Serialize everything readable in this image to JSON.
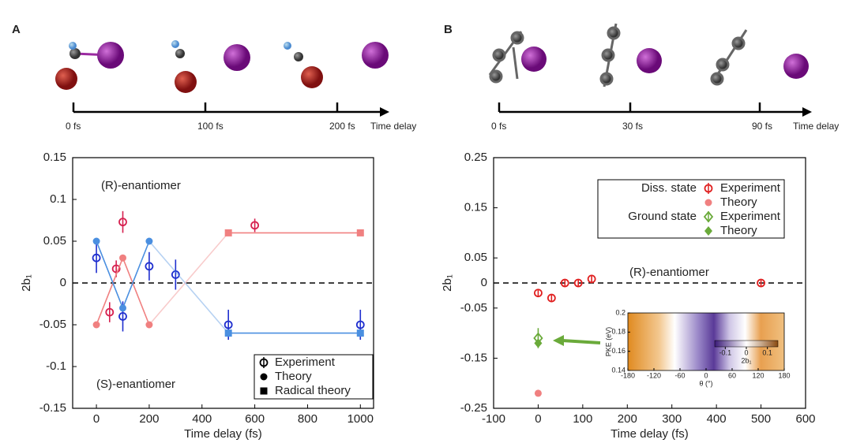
{
  "chart_data": [
    {
      "type": "scatter",
      "panel_label": "A",
      "timeline": {
        "ticks": [
          "0 fs",
          "100 fs",
          "200 fs"
        ],
        "label": "Time delay"
      },
      "xlabel": "Time delay (fs)",
      "ylabel": "2b₁",
      "xlim": [
        -90,
        1050
      ],
      "xticks": [
        0,
        200,
        400,
        600,
        800,
        1000
      ],
      "ylim": [
        -0.15,
        0.15
      ],
      "yticks": [
        -0.15,
        -0.1,
        -0.05,
        0,
        0.05,
        0.1,
        0.15
      ],
      "zero_line": true,
      "annotations": [
        {
          "text": "(R)-enantiomer",
          "color": "#d6204f"
        },
        {
          "text": "(S)-enantiomer",
          "color": "#1f2fcf"
        }
      ],
      "legend": {
        "entries": [
          "Experiment",
          "Theory",
          "Radical theory"
        ]
      },
      "series": [
        {
          "color": "#d6204f",
          "marker": "open-circle",
          "x": [
            50,
            75,
            100,
            600
          ],
          "values": [
            -0.035,
            0.017,
            0.073,
            0.069
          ],
          "errors": [
            0.012,
            0.01,
            0.013,
            0.008
          ]
        },
        {
          "color": "#f08080",
          "marker": "circle",
          "line": true,
          "x": [
            0,
            100,
            200
          ],
          "values": [
            -0.05,
            0.03,
            -0.05
          ]
        },
        {
          "color": "#f08080",
          "marker": "square",
          "line": true,
          "x": [
            500,
            1000
          ],
          "values": [
            0.06,
            0.06
          ]
        },
        {
          "color": "#1f2fcf",
          "marker": "open-circle",
          "x": [
            0,
            100,
            200,
            300,
            500,
            1000
          ],
          "values": [
            0.03,
            -0.04,
            0.02,
            0.01,
            -0.05,
            -0.05
          ],
          "errors": [
            0.018,
            0.018,
            0.017,
            0.018,
            0.018,
            0.018
          ]
        },
        {
          "color": "#4a8fe0",
          "marker": "circle",
          "line": true,
          "x": [
            0,
            100,
            200
          ],
          "values": [
            0.05,
            -0.03,
            0.05
          ]
        },
        {
          "color": "#4a8fe0",
          "marker": "square",
          "line": true,
          "x": [
            500,
            1000
          ],
          "values": [
            -0.06,
            -0.06
          ]
        }
      ]
    },
    {
      "type": "scatter",
      "panel_label": "B",
      "timeline": {
        "ticks": [
          "0 fs",
          "30 fs",
          "90 fs"
        ],
        "label": "Time delay"
      },
      "xlabel": "Time delay (fs)",
      "ylabel": "2b₁",
      "xlim": [
        -100,
        600
      ],
      "xticks": [
        -100,
        0,
        100,
        200,
        300,
        400,
        500,
        600
      ],
      "ylim": [
        -0.25,
        0.25
      ],
      "yticks": [
        -0.25,
        -0.15,
        -0.05,
        0,
        0.05,
        0.15,
        0.25
      ],
      "zero_line": true,
      "annotations": [
        {
          "text": "(R)-enantiomer",
          "color": "#e02020"
        }
      ],
      "legend": {
        "groups": [
          {
            "label": "Diss. state",
            "entries": [
              "Experiment",
              "Theory"
            ]
          },
          {
            "label": "Ground state",
            "entries": [
              "Experiment",
              "Theory"
            ]
          }
        ]
      },
      "series": [
        {
          "color": "#e02020",
          "marker": "open-circle",
          "x": [
            0,
            30,
            60,
            90,
            120,
            500
          ],
          "values": [
            -0.02,
            -0.03,
            0,
            0,
            0.008,
            0
          ],
          "errors": [
            0.008,
            0.008,
            0.008,
            0.008,
            0.008,
            0.008
          ]
        },
        {
          "color": "#f08080",
          "marker": "circle",
          "x": [
            0
          ],
          "values": [
            -0.22
          ]
        },
        {
          "color": "#6aaa3a",
          "marker": "open-diamond",
          "x": [
            0
          ],
          "values": [
            -0.11
          ],
          "errors": [
            0.02
          ]
        },
        {
          "color": "#6aaa3a",
          "marker": "diamond",
          "x": [
            0
          ],
          "values": [
            -0.12
          ]
        }
      ],
      "inset": {
        "xlabel": "θ (°)",
        "ylabel": "PKE (eV)",
        "xlim": [
          -180,
          180
        ],
        "xticks": [
          -180,
          -120,
          -60,
          0,
          60,
          120,
          180
        ],
        "ylim": [
          0.14,
          0.2
        ],
        "yticks": [
          0.14,
          0.16,
          0.18,
          0.2
        ],
        "colorbar": {
          "lim": [
            -0.15,
            0.15
          ],
          "ticks": [
            -0.1,
            0,
            0.1
          ],
          "label": "2b₁"
        }
      }
    }
  ]
}
